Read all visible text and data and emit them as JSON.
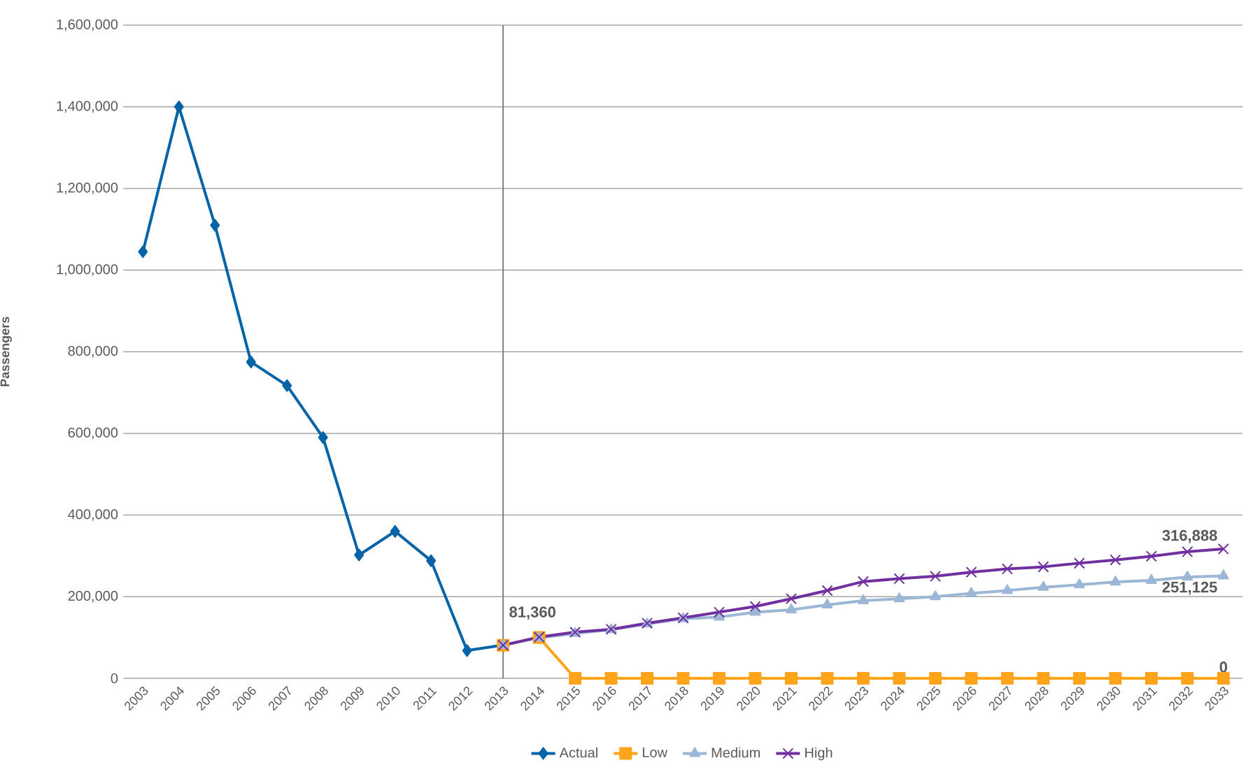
{
  "chart_data": {
    "type": "line",
    "ylabel": "Passengers",
    "categories": [
      "2003",
      "2004",
      "2005",
      "2006",
      "2007",
      "2008",
      "2009",
      "2010",
      "2011",
      "2012",
      "2013",
      "2014",
      "2015",
      "2016",
      "2017",
      "2018",
      "2019",
      "2020",
      "2021",
      "2022",
      "2023",
      "2024",
      "2025",
      "2026",
      "2027",
      "2028",
      "2029",
      "2030",
      "2031",
      "2032",
      "2033"
    ],
    "series": [
      {
        "name": "Actual",
        "color": "#0563a8",
        "marker": "diamond",
        "values": [
          1045000,
          1400000,
          1110000,
          775000,
          717000,
          590000,
          302000,
          360000,
          288000,
          68000,
          81360,
          null,
          null,
          null,
          null,
          null,
          null,
          null,
          null,
          null,
          null,
          null,
          null,
          null,
          null,
          null,
          null,
          null,
          null,
          null,
          null
        ],
        "value_labels": [
          null,
          null,
          null,
          null,
          null,
          null,
          null,
          null,
          null,
          null,
          "81,360",
          null,
          null,
          null,
          null,
          null,
          null,
          null,
          null,
          null,
          null,
          null,
          null,
          null,
          null,
          null,
          null,
          null,
          null,
          null,
          null
        ]
      },
      {
        "name": "Low",
        "color": "#ffa31a",
        "marker": "square",
        "values": [
          null,
          null,
          null,
          null,
          null,
          null,
          null,
          null,
          null,
          null,
          81000,
          100000,
          0,
          0,
          0,
          0,
          0,
          0,
          0,
          0,
          0,
          0,
          0,
          0,
          0,
          0,
          0,
          0,
          0,
          0,
          0
        ],
        "value_labels": [
          null,
          null,
          null,
          null,
          null,
          null,
          null,
          null,
          null,
          null,
          null,
          null,
          null,
          null,
          null,
          null,
          null,
          null,
          null,
          null,
          null,
          null,
          null,
          null,
          null,
          null,
          null,
          null,
          null,
          null,
          "0"
        ]
      },
      {
        "name": "Medium",
        "color": "#9bb7d5",
        "marker": "triangle",
        "values": [
          null,
          null,
          null,
          null,
          null,
          null,
          null,
          null,
          null,
          null,
          81000,
          99000,
          110000,
          119000,
          133000,
          146000,
          150000,
          162000,
          168000,
          180000,
          190000,
          195000,
          200000,
          208000,
          215000,
          223000,
          229000,
          236000,
          240000,
          248000,
          251125
        ],
        "value_labels": [
          null,
          null,
          null,
          null,
          null,
          null,
          null,
          null,
          null,
          null,
          null,
          null,
          null,
          null,
          null,
          null,
          null,
          null,
          null,
          null,
          null,
          null,
          null,
          null,
          null,
          null,
          null,
          null,
          null,
          null,
          "251,125"
        ]
      },
      {
        "name": "High",
        "color": "#7030a0",
        "marker": "cross",
        "values": [
          null,
          null,
          null,
          null,
          null,
          null,
          null,
          null,
          null,
          null,
          81000,
          101000,
          113000,
          120000,
          135000,
          148000,
          162000,
          176000,
          195000,
          215000,
          237000,
          244000,
          250000,
          260000,
          268000,
          273000,
          282000,
          290000,
          299000,
          310000,
          316888
        ],
        "value_labels": [
          null,
          null,
          null,
          null,
          null,
          null,
          null,
          null,
          null,
          null,
          null,
          null,
          null,
          null,
          null,
          null,
          null,
          null,
          null,
          null,
          null,
          null,
          null,
          null,
          null,
          null,
          null,
          null,
          null,
          null,
          "316,888"
        ]
      }
    ],
    "ylim": [
      0,
      1600000
    ],
    "yticks": [
      {
        "value": 0,
        "label": "0"
      },
      {
        "value": 200000,
        "label": "200,000"
      },
      {
        "value": 400000,
        "label": "400,000"
      },
      {
        "value": 600000,
        "label": "600,000"
      },
      {
        "value": 800000,
        "label": "800,000"
      },
      {
        "value": 1000000,
        "label": "1,000,000"
      },
      {
        "value": 1200000,
        "label": "1,200,000"
      },
      {
        "value": 1400000,
        "label": "1,400,000"
      },
      {
        "value": 1600000,
        "label": "1,600,000"
      }
    ],
    "ref_lines": [
      {
        "axis": "x",
        "value": "2013",
        "color": "#808080"
      }
    ],
    "grid": "y",
    "legend": "bottom",
    "line_style": "solid"
  }
}
